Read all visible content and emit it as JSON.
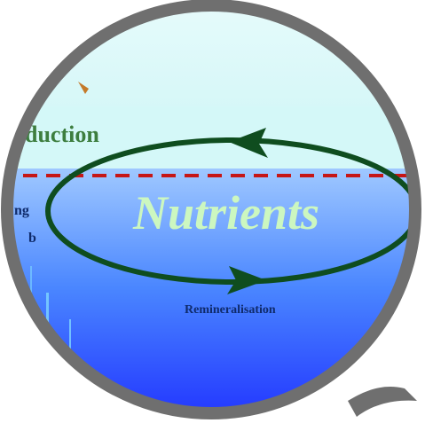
{
  "diagram": {
    "labels": {
      "production_partial": "duction",
      "nutrients": "Nutrients",
      "remineralisation": "Remineralisation",
      "left_partial_1": "ng",
      "left_partial_2": "b"
    },
    "colors": {
      "frame": "#6f6f6f",
      "frame_shadow": "#5a5a5a",
      "sky_top": "#e6fbfb",
      "sky_bottom": "#cdf5f6",
      "water_top": "#9fc8ff",
      "water_mid": "#4a86ff",
      "water_bottom": "#1d2cff",
      "cycle_stroke": "#0f4d1f",
      "dash_line": "#c61616",
      "nutrients_text": "#ccf7c0",
      "production_text": "#3d7e3f",
      "remineralisation_text": "#0f2b6b",
      "left_text": "#0f2b6b"
    },
    "icons": {
      "magnifier_frame": "magnifier-frame",
      "triangle_marker": "marker-icon"
    }
  }
}
